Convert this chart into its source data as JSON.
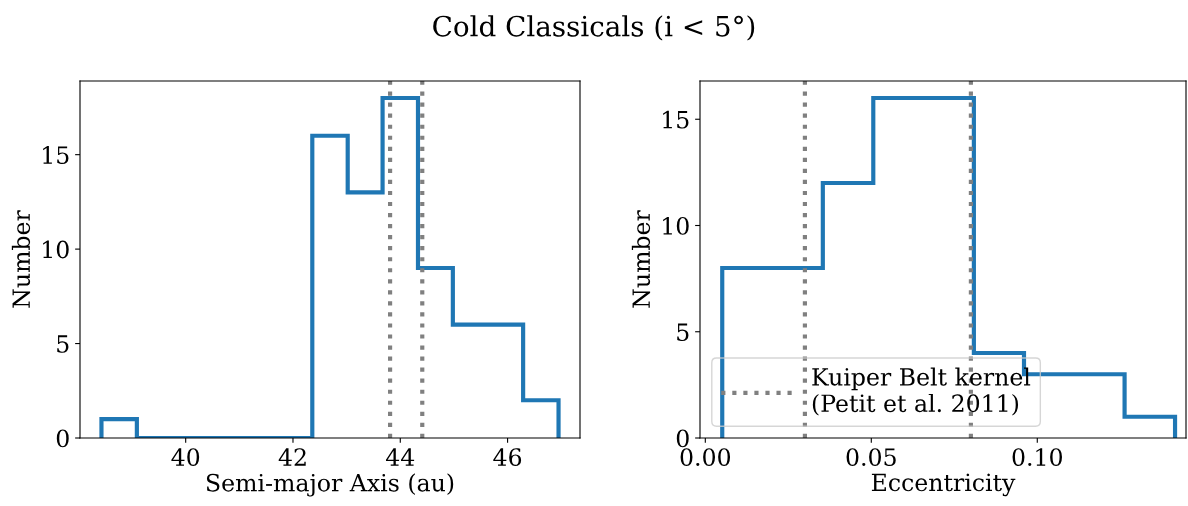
{
  "chart_data": [
    {
      "type": "histogram",
      "title": "Cold Classicals (i < 5°)",
      "xlabel": "Semi-major Axis (au)",
      "ylabel": "Number",
      "bins": [
        38.43,
        39.09,
        39.74,
        40.4,
        41.05,
        41.71,
        42.36,
        43.02,
        43.67,
        44.33,
        44.98,
        45.64,
        46.29,
        46.95
      ],
      "values": [
        1,
        0,
        0,
        0,
        0,
        0,
        16,
        13,
        18,
        9,
        6,
        6,
        2
      ],
      "color": "#1f77b4",
      "xlim": [
        38.03,
        47.35
      ],
      "xticks": [
        40,
        42,
        44,
        46
      ],
      "ylim": [
        0,
        18.9
      ],
      "yticks": [
        0,
        5,
        10,
        15
      ],
      "ref_lines": [
        {
          "axis": "x",
          "value": 43.81,
          "color": "#808080",
          "line_style": "dotted"
        },
        {
          "axis": "x",
          "value": 44.41,
          "color": "#808080",
          "line_style": "dotted"
        }
      ],
      "grid": false,
      "legend": false
    },
    {
      "type": "histogram",
      "xlabel": "Eccentricity",
      "ylabel": "Number",
      "bins": [
        0.0051,
        0.0203,
        0.0354,
        0.0506,
        0.0657,
        0.0809,
        0.096,
        0.1112,
        0.1263,
        0.1415
      ],
      "values": [
        8,
        8,
        12,
        16,
        16,
        4,
        3,
        3,
        1
      ],
      "color": "#1f77b4",
      "xlim": [
        -0.0016,
        0.1448
      ],
      "xticks": [
        {
          "value": 0,
          "label": "0.00"
        },
        0.05,
        {
          "value": 0.1,
          "label": "0.10"
        }
      ],
      "ylim": [
        0,
        16.8
      ],
      "yticks": [
        0,
        5,
        10,
        15
      ],
      "ref_lines": [
        {
          "axis": "x",
          "value": 0.03,
          "color": "#808080",
          "line_style": "dotted",
          "label": "Kuiper Belt kernel\n(Petit et al. 2011)"
        },
        {
          "axis": "x",
          "value": 0.08,
          "color": "#808080",
          "line_style": "dotted"
        }
      ],
      "grid": false,
      "legend": "bottom left"
    }
  ]
}
